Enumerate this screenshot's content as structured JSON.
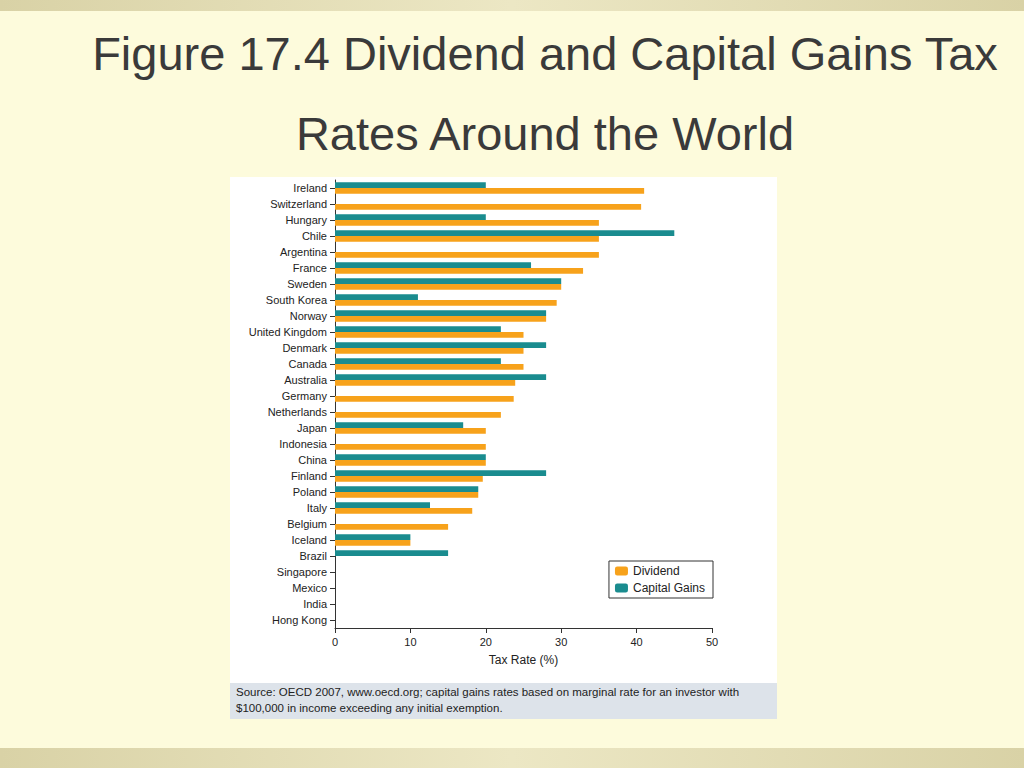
{
  "chart_data": {
    "type": "bar",
    "orientation": "horizontal",
    "title": "Figure 17.4  Dividend and Capital Gains Tax Rates Around the World",
    "source": "Source: OECD 2007, www.oecd.org; capital gains rates based on marginal rate for an investor with $100,000 in income exceeding any initial exemption.",
    "x_label": "Tax Rate (%)",
    "categories": [
      "Ireland",
      "Switzerland",
      "Hungary",
      "Chile",
      "Argentina",
      "France",
      "Sweden",
      "South Korea",
      "Norway",
      "United Kingdom",
      "Denmark",
      "Canada",
      "Australia",
      "Germany",
      "Netherlands",
      "Japan",
      "Indonesia",
      "China",
      "Finland",
      "Poland",
      "Italy",
      "Belgium",
      "Iceland",
      "Brazil",
      "Singapore",
      "Mexico",
      "India",
      "Hong Kong"
    ],
    "series": [
      {
        "name": "Dividend",
        "color": "#f7a21b",
        "values": [
          41,
          40.6,
          35,
          35,
          35,
          32.9,
          30,
          29.4,
          28,
          25,
          25,
          25,
          23.9,
          23.7,
          22,
          20,
          20,
          20,
          19.6,
          19,
          18.2,
          15,
          10,
          0,
          0,
          0,
          0,
          0
        ]
      },
      {
        "name": "Capital Gains",
        "color": "#1a8c8f",
        "values": [
          20,
          0,
          20,
          45,
          0,
          26,
          30,
          11,
          28,
          22,
          28,
          22,
          28,
          0,
          0,
          17,
          0,
          20,
          28,
          19,
          12.6,
          0,
          10,
          15,
          0,
          0,
          0,
          0
        ]
      }
    ],
    "xlim": [
      0,
      50
    ],
    "xticks": [
      0,
      10,
      20,
      30,
      40,
      50
    ],
    "grid": false,
    "legend": "lower right"
  }
}
